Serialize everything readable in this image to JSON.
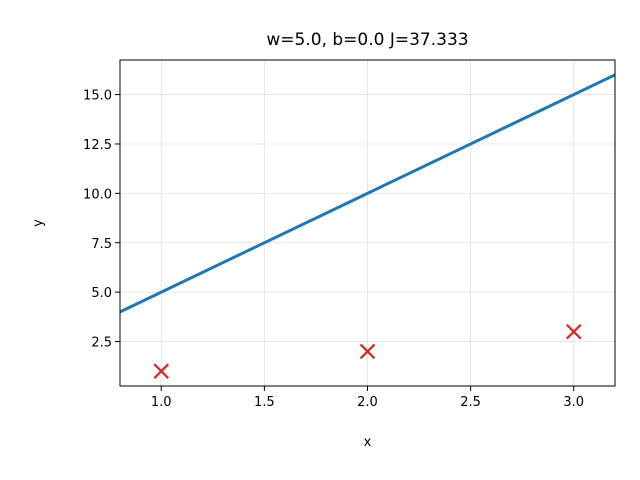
{
  "chart_data": {
    "type": "line",
    "title": "w=5.0, b=0.0  J=37.333",
    "xlabel": "x",
    "ylabel": "y",
    "xlim": [
      0.8,
      3.2
    ],
    "ylim": [
      0.25,
      16.75
    ],
    "xticks": [
      "1.0",
      "1.5",
      "2.0",
      "2.5",
      "3.0"
    ],
    "yticks": [
      "2.5",
      "5.0",
      "7.5",
      "10.0",
      "12.5",
      "15.0"
    ],
    "grid": true,
    "series": [
      {
        "kind": "line",
        "x": [
          0.8,
          3.2
        ],
        "y": [
          4.0,
          16.0
        ],
        "color": "#1f77b4"
      },
      {
        "kind": "scatter",
        "marker": "x",
        "x": [
          1.0,
          2.0,
          3.0
        ],
        "y": [
          1.0,
          2.0,
          3.0
        ],
        "color": "#d62728"
      }
    ]
  }
}
